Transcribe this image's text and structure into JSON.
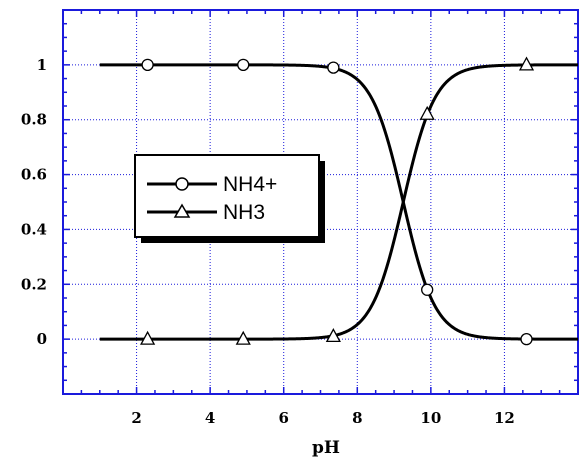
{
  "chart_data": {
    "type": "line",
    "title": "",
    "xlabel": "pH",
    "ylabel": "",
    "xlim": [
      0,
      14
    ],
    "ylim": [
      -0.2,
      1.2
    ],
    "xticks": [
      2,
      4,
      6,
      8,
      10,
      12
    ],
    "yticks": [
      0,
      0.2,
      0.4,
      0.6,
      0.8,
      1
    ],
    "grid": true,
    "grid_color": "#1a1adc",
    "legend_position": "center-left",
    "pKa": 9.25,
    "x_range": [
      1,
      14
    ],
    "series": [
      {
        "name": "NH4+",
        "marker": "circle",
        "markers": [
          [
            2.3,
            1
          ],
          [
            4.9,
            1
          ],
          [
            7.35,
            0.99
          ],
          [
            9.9,
            0.18
          ],
          [
            12.6,
            0
          ]
        ]
      },
      {
        "name": "NH3",
        "marker": "triangle",
        "markers": [
          [
            2.3,
            0
          ],
          [
            4.9,
            0
          ],
          [
            7.35,
            0.01
          ],
          [
            9.9,
            0.82
          ],
          [
            12.6,
            1
          ]
        ]
      }
    ]
  }
}
